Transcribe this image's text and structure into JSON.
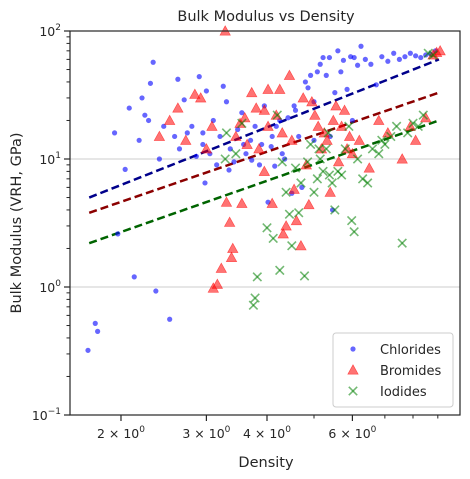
{
  "chart_data": {
    "type": "scatter",
    "title": "Bulk Modulus vs Density",
    "xlabel": "Density",
    "ylabel": "Bulk Modulus (VRH, GPa)",
    "xscale": "log",
    "yscale": "log",
    "xlim": [
      1.57,
      10.0
    ],
    "ylim": [
      0.1,
      100
    ],
    "grid": "horizontal major lines",
    "legend_position": "lower-right",
    "x_ticks": [
      {
        "value": 2,
        "base": "2 × 10",
        "exp": "0"
      },
      {
        "value": 3,
        "base": "3 × 10",
        "exp": "0"
      },
      {
        "value": 4,
        "base": "4 × 10",
        "exp": "0"
      },
      {
        "value": 6,
        "base": "6 × 10",
        "exp": "0"
      }
    ],
    "y_ticks": [
      {
        "value": 0.1,
        "base": "10",
        "exp": "−1"
      },
      {
        "value": 1,
        "base": "10",
        "exp": "0"
      },
      {
        "value": 10,
        "base": "10",
        "exp": "1"
      },
      {
        "value": 100,
        "base": "10",
        "exp": "2"
      }
    ],
    "series": [
      {
        "name": "Chlorides",
        "marker": "circle",
        "color": "#0000ff",
        "points": [
          [
            1.71,
            0.32
          ],
          [
            1.77,
            0.52
          ],
          [
            1.79,
            0.45
          ],
          [
            1.94,
            16
          ],
          [
            1.97,
            2.6
          ],
          [
            2.04,
            8.3
          ],
          [
            2.08,
            25
          ],
          [
            2.13,
            1.2
          ],
          [
            2.18,
            14
          ],
          [
            2.21,
            30
          ],
          [
            2.24,
            22
          ],
          [
            2.3,
            39
          ],
          [
            2.33,
            57
          ],
          [
            2.36,
            0.93
          ],
          [
            2.4,
            10
          ],
          [
            2.45,
            18
          ],
          [
            2.52,
            0.56
          ],
          [
            2.58,
            15
          ],
          [
            2.62,
            42
          ],
          [
            2.64,
            12
          ],
          [
            2.7,
            29
          ],
          [
            2.74,
            16
          ],
          [
            2.8,
            18
          ],
          [
            2.86,
            10.5
          ],
          [
            2.9,
            44
          ],
          [
            2.95,
            13
          ],
          [
            3.0,
            34
          ],
          [
            3.05,
            11
          ],
          [
            3.1,
            20
          ],
          [
            3.15,
            9
          ],
          [
            3.2,
            15
          ],
          [
            3.25,
            37
          ],
          [
            3.3,
            28
          ],
          [
            3.36,
            12
          ],
          [
            3.42,
            9.5
          ],
          [
            3.48,
            17
          ],
          [
            3.55,
            23
          ],
          [
            3.62,
            11
          ],
          [
            3.7,
            14
          ],
          [
            3.78,
            18
          ],
          [
            3.86,
            9
          ],
          [
            3.95,
            26
          ],
          [
            4.02,
            4.6
          ],
          [
            4.1,
            15
          ],
          [
            4.18,
            18
          ],
          [
            4.25,
            20
          ],
          [
            4.35,
            10
          ],
          [
            4.42,
            21
          ],
          [
            4.5,
            5.4
          ],
          [
            4.58,
            24
          ],
          [
            4.65,
            15
          ],
          [
            4.72,
            6.0
          ],
          [
            4.8,
            40
          ],
          [
            4.86,
            36
          ],
          [
            4.92,
            45
          ],
          [
            5.0,
            28
          ],
          [
            5.08,
            48
          ],
          [
            5.15,
            55
          ],
          [
            5.22,
            62
          ],
          [
            5.3,
            45
          ],
          [
            5.38,
            62
          ],
          [
            5.46,
            4.0
          ],
          [
            5.52,
            33
          ],
          [
            5.6,
            70
          ],
          [
            5.68,
            48
          ],
          [
            5.75,
            59
          ],
          [
            5.85,
            35
          ],
          [
            5.95,
            63
          ],
          [
            6.05,
            62
          ],
          [
            6.15,
            54
          ],
          [
            6.25,
            76
          ],
          [
            6.38,
            60
          ],
          [
            6.55,
            55
          ],
          [
            6.72,
            38
          ],
          [
            6.9,
            63
          ],
          [
            7.1,
            58
          ],
          [
            7.3,
            67
          ],
          [
            7.5,
            60
          ],
          [
            7.7,
            63
          ],
          [
            7.9,
            67
          ],
          [
            8.1,
            64
          ],
          [
            8.3,
            62
          ],
          [
            8.5,
            65
          ],
          [
            8.7,
            66
          ],
          [
            8.9,
            70
          ],
          [
            4.3,
            11
          ],
          [
            3.9,
            13
          ],
          [
            2.98,
            6.5
          ],
          [
            3.34,
            8.2
          ],
          [
            4.55,
            26
          ],
          [
            5.4,
            15
          ],
          [
            3.72,
            9.8
          ],
          [
            4.08,
            12.5
          ],
          [
            2.28,
            20
          ],
          [
            2.95,
            16
          ],
          [
            3.58,
            13
          ],
          [
            4.15,
            8.8
          ],
          [
            5.0,
            14
          ],
          [
            6.0,
            20
          ]
        ]
      },
      {
        "name": "Bromides",
        "marker": "triangle",
        "color": "#ff0000",
        "points": [
          [
            2.4,
            15
          ],
          [
            2.52,
            20
          ],
          [
            2.62,
            25
          ],
          [
            2.72,
            14
          ],
          [
            2.84,
            32
          ],
          [
            2.92,
            30
          ],
          [
            3.0,
            12
          ],
          [
            3.08,
            18
          ],
          [
            3.1,
            0.98
          ],
          [
            3.16,
            1.05
          ],
          [
            3.22,
            1.4
          ],
          [
            3.28,
            100
          ],
          [
            3.3,
            4.6
          ],
          [
            3.35,
            3.2
          ],
          [
            3.38,
            1.7
          ],
          [
            3.4,
            2.0
          ],
          [
            3.45,
            15
          ],
          [
            3.52,
            19
          ],
          [
            3.6,
            21
          ],
          [
            3.64,
            13
          ],
          [
            3.72,
            33
          ],
          [
            3.8,
            25
          ],
          [
            3.85,
            12
          ],
          [
            3.95,
            8
          ],
          [
            4.02,
            18
          ],
          [
            4.1,
            4.5
          ],
          [
            4.18,
            22
          ],
          [
            4.25,
            35
          ],
          [
            4.32,
            2.6
          ],
          [
            4.38,
            3.0
          ],
          [
            4.45,
            45
          ],
          [
            4.5,
            14
          ],
          [
            4.55,
            5.8
          ],
          [
            4.6,
            3.3
          ],
          [
            4.7,
            2.1
          ],
          [
            4.75,
            30
          ],
          [
            4.82,
            9
          ],
          [
            4.88,
            4.4
          ],
          [
            4.95,
            28
          ],
          [
            5.02,
            22
          ],
          [
            5.1,
            18
          ],
          [
            5.18,
            12
          ],
          [
            5.25,
            16
          ],
          [
            5.32,
            14
          ],
          [
            5.4,
            5.5
          ],
          [
            5.48,
            20
          ],
          [
            5.55,
            26
          ],
          [
            5.62,
            9.5
          ],
          [
            5.7,
            18
          ],
          [
            5.78,
            24
          ],
          [
            5.85,
            12
          ],
          [
            5.92,
            15
          ],
          [
            6.0,
            11
          ],
          [
            6.2,
            14
          ],
          [
            6.5,
            8.5
          ],
          [
            6.8,
            20
          ],
          [
            7.1,
            16
          ],
          [
            7.6,
            10
          ],
          [
            7.9,
            18
          ],
          [
            8.1,
            14
          ],
          [
            8.5,
            21
          ],
          [
            8.8,
            65
          ],
          [
            8.95,
            68
          ],
          [
            9.1,
            70
          ],
          [
            4.02,
            35
          ],
          [
            3.95,
            24
          ],
          [
            4.3,
            16
          ],
          [
            3.55,
            4.5
          ]
        ]
      },
      {
        "name": "Iodides",
        "marker": "x",
        "color": "#008000",
        "points": [
          [
            3.75,
            0.72
          ],
          [
            3.78,
            0.82
          ],
          [
            3.82,
            1.2
          ],
          [
            4.0,
            2.9
          ],
          [
            4.12,
            2.4
          ],
          [
            4.25,
            1.35
          ],
          [
            4.38,
            5.5
          ],
          [
            4.45,
            3.7
          ],
          [
            4.5,
            2.1
          ],
          [
            4.58,
            8.5
          ],
          [
            4.7,
            6.5
          ],
          [
            4.78,
            1.22
          ],
          [
            4.85,
            9.5
          ],
          [
            4.92,
            13
          ],
          [
            5.0,
            5.5
          ],
          [
            5.08,
            7
          ],
          [
            5.15,
            10
          ],
          [
            5.22,
            8
          ],
          [
            5.3,
            12
          ],
          [
            5.38,
            7.5
          ],
          [
            5.45,
            6.5
          ],
          [
            5.52,
            4.0
          ],
          [
            5.6,
            8
          ],
          [
            5.7,
            7.5
          ],
          [
            5.8,
            12
          ],
          [
            5.9,
            18
          ],
          [
            5.98,
            3.3
          ],
          [
            6.05,
            2.7
          ],
          [
            6.15,
            10
          ],
          [
            6.3,
            7
          ],
          [
            6.45,
            6.5
          ],
          [
            6.6,
            12
          ],
          [
            6.8,
            11
          ],
          [
            7.0,
            13
          ],
          [
            7.2,
            15
          ],
          [
            7.4,
            18
          ],
          [
            7.6,
            2.2
          ],
          [
            7.8,
            16
          ],
          [
            8.0,
            19
          ],
          [
            8.2,
            18
          ],
          [
            8.4,
            22
          ],
          [
            8.6,
            67
          ],
          [
            8.8,
            65
          ],
          [
            4.65,
            3.8
          ],
          [
            5.35,
            16
          ],
          [
            6.9,
            14
          ],
          [
            3.28,
            10
          ],
          [
            3.3,
            16
          ],
          [
            3.55,
            19
          ],
          [
            3.45,
            11
          ],
          [
            4.3,
            9.5
          ],
          [
            5.12,
            12
          ],
          [
            4.2,
            22
          ]
        ]
      }
    ],
    "fit_lines": [
      {
        "series": "Chlorides",
        "color": "#00008b",
        "style": "dashed",
        "x": [
          1.72,
          9.05
        ],
        "y": [
          5.0,
          60
        ]
      },
      {
        "series": "Bromides",
        "color": "#8b0000",
        "style": "dashed",
        "x": [
          1.72,
          9.05
        ],
        "y": [
          3.8,
          33
        ]
      },
      {
        "series": "Iodides",
        "color": "#006400",
        "style": "dashed",
        "x": [
          1.72,
          9.05
        ],
        "y": [
          2.2,
          20
        ]
      }
    ]
  }
}
